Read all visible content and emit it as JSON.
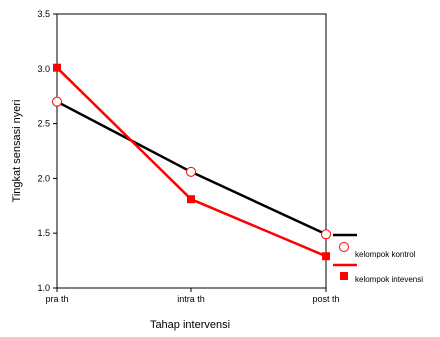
{
  "chart_data": {
    "type": "line",
    "categories": [
      "pra th",
      "intra th",
      "post th"
    ],
    "series": [
      {
        "name": "kelompok kontrol",
        "values": [
          2.7,
          2.06,
          1.49
        ],
        "color": "#000000",
        "marker": "open-circle",
        "marker_color": "#ff0000"
      },
      {
        "name": "kelompok intevensi",
        "values": [
          3.01,
          1.81,
          1.29
        ],
        "color": "#ff0000",
        "marker": "filled-square",
        "marker_color": "#ff0000"
      }
    ],
    "xlabel": "Tahap intervensi",
    "ylabel": "Tingkat sensasi nyeri",
    "ylim": [
      1.0,
      3.5
    ],
    "yticks": [
      "1.0",
      "1.5",
      "2.0",
      "2.5",
      "3.0",
      "3.5"
    ],
    "grid": false,
    "legend_position": "right"
  }
}
